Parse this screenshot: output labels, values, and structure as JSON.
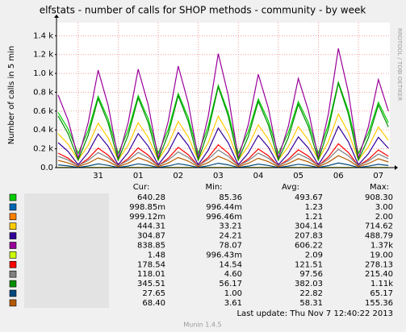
{
  "chart_data": {
    "type": "line",
    "title": "elfstats - number of calls for SHOP methods - community - by week",
    "y_label": "Number of calls in 5 min",
    "watermark": "RRDTOOL / TOBI OETIKER",
    "categories": [
      null,
      null,
      null,
      null,
      "31",
      null,
      null,
      null,
      "01",
      null,
      null,
      null,
      "02",
      null,
      null,
      null,
      "03",
      null,
      null,
      null,
      "04",
      null,
      null,
      null,
      "05",
      null,
      null,
      null,
      "06",
      null,
      null,
      null,
      "07",
      null
    ],
    "ylim": [
      0,
      1540
    ],
    "yticks": [
      {
        "value": 0,
        "label": "0.0"
      },
      {
        "value": 200,
        "label": "0.2 k"
      },
      {
        "value": 400,
        "label": "0.4 k"
      },
      {
        "value": 600,
        "label": "0.6 k"
      },
      {
        "value": 800,
        "label": "0.8 k"
      },
      {
        "value": 1000,
        "label": "1.0 k"
      },
      {
        "value": 1200,
        "label": "1.2 k"
      },
      {
        "value": 1400,
        "label": "1.4 k"
      }
    ],
    "grid": true,
    "series": [
      {
        "color": "#00CC00",
        "values": [
          586,
          411,
          150,
          393,
          757,
          514,
          150,
          396,
          764,
          519,
          150,
          404,
          786,
          532,
          150,
          439,
          872,
          583,
          150,
          381,
          729,
          497,
          150,
          370,
          700,
          480,
          150,
          453,
          907,
          604,
          150,
          367,
          693,
          476
        ]
      },
      {
        "color": "#0066B3",
        "values": [
          1,
          1,
          1,
          1,
          1,
          1,
          1,
          1,
          1,
          1,
          1,
          1,
          1,
          1,
          1,
          1,
          1,
          1,
          1,
          1,
          1,
          1,
          1,
          1,
          1,
          1,
          1,
          1,
          1,
          1,
          1,
          1,
          1,
          1
        ]
      },
      {
        "color": "#FF8000",
        "values": [
          1,
          1,
          1,
          1,
          1,
          1,
          1,
          1,
          1,
          1,
          1,
          1,
          1,
          1,
          1,
          1,
          1,
          1,
          1,
          1,
          1,
          1,
          1,
          1,
          1,
          1,
          1,
          1,
          1,
          1,
          1,
          1,
          1,
          1
        ]
      },
      {
        "color": "#FFCC00",
        "values": [
          361,
          249,
          80,
          237,
          472,
          315,
          80,
          239,
          477,
          318,
          80,
          244,
          491,
          327,
          80,
          266,
          546,
          360,
          80,
          230,
          454,
          304,
          80,
          222,
          435,
          293,
          80,
          276,
          569,
          374,
          80,
          220,
          431,
          290
        ]
      },
      {
        "color": "#330099",
        "values": [
          265,
          171,
          30,
          161,
          357,
          226,
          30,
          162,
          361,
          228,
          30,
          167,
          372,
          235,
          30,
          185,
          419,
          263,
          30,
          155,
          342,
          217,
          30,
          148,
          326,
          208,
          30,
          193,
          438,
          275,
          30,
          147,
          322,
          205
        ]
      },
      {
        "color": "#990099",
        "values": [
          770,
          502,
          100,
          474,
          1034,
          660,
          100,
          478,
          1045,
          667,
          100,
          491,
          1078,
          687,
          100,
          544,
          1210,
          766,
          100,
          456,
          990,
          634,
          100,
          438,
          946,
          608,
          100,
          566,
          1265,
          799,
          100,
          434,
          935,
          601
        ]
      },
      {
        "color": "#CCFF00",
        "values": [
          2,
          2,
          2,
          2,
          2,
          2,
          2,
          2,
          2,
          2,
          2,
          2,
          2,
          2,
          2,
          2,
          2,
          2,
          2,
          2,
          2,
          2,
          2,
          2,
          2,
          2,
          2,
          2,
          2,
          2,
          2,
          2,
          2,
          2
        ]
      },
      {
        "color": "#FF0000",
        "values": [
          154,
          100,
          20,
          95,
          207,
          132,
          20,
          96,
          209,
          133,
          20,
          98,
          216,
          137,
          20,
          109,
          242,
          153,
          20,
          91,
          198,
          127,
          20,
          88,
          189,
          122,
          20,
          113,
          253,
          160,
          20,
          87,
          187,
          120
        ]
      },
      {
        "color": "#808080",
        "values": [
          120,
          80,
          20,
          76,
          160,
          104,
          20,
          77,
          162,
          105,
          20,
          79,
          167,
          108,
          20,
          87,
          187,
          120,
          20,
          73,
          154,
          100,
          20,
          71,
          147,
          96,
          20,
          90,
          195,
          125,
          20,
          70,
          145,
          95
        ]
      },
      {
        "color": "#008F00",
        "values": [
          549,
          361,
          80,
          342,
          734,
          472,
          80,
          345,
          742,
          477,
          80,
          354,
          765,
          491,
          80,
          391,
          857,
          546,
          80,
          329,
          703,
          454,
          80,
          317,
          672,
          436,
          80,
          406,
          896,
          569,
          80,
          314,
          665,
          431
        ]
      },
      {
        "color": "#00487D",
        "values": [
          29,
          18,
          2,
          17,
          39,
          24,
          2,
          17,
          40,
          25,
          2,
          18,
          41,
          25,
          2,
          20,
          46,
          29,
          2,
          16,
          38,
          23,
          2,
          16,
          36,
          22,
          2,
          21,
          49,
          30,
          2,
          15,
          35,
          22
        ]
      },
      {
        "color": "#B35A00",
        "values": [
          77,
          50,
          10,
          47,
          103,
          66,
          10,
          48,
          105,
          67,
          10,
          49,
          108,
          69,
          10,
          54,
          121,
          77,
          10,
          46,
          99,
          63,
          10,
          44,
          95,
          61,
          10,
          57,
          127,
          80,
          10,
          43,
          94,
          60
        ]
      }
    ],
    "legend": {
      "headers": [
        "Cur:",
        "Min:",
        "Avg:",
        "Max:"
      ],
      "rows": [
        [
          "640.28",
          "85.36",
          "493.67",
          "908.30"
        ],
        [
          "998.85m",
          "996.44m",
          "1.23",
          "3.00"
        ],
        [
          "999.12m",
          "996.46m",
          "1.21",
          "2.00"
        ],
        [
          "444.31",
          "33.21",
          "304.14",
          "714.62"
        ],
        [
          "304.87",
          "24.21",
          "207.83",
          "488.79"
        ],
        [
          "838.85",
          "78.07",
          "606.22",
          "1.37k"
        ],
        [
          "1.48",
          "996.43m",
          "2.09",
          "19.00"
        ],
        [
          "178.54",
          "14.54",
          "121.51",
          "278.13"
        ],
        [
          "118.01",
          "4.60",
          "97.56",
          "215.40"
        ],
        [
          "345.51",
          "56.17",
          "382.03",
          "1.11k"
        ],
        [
          "27.65",
          "1.00",
          "22.82",
          "65.17"
        ],
        [
          "68.40",
          "3.61",
          "58.31",
          "155.36"
        ]
      ]
    },
    "last_update": "Last update: Thu Nov  7 12:40:22 2013",
    "footer": "Munin 1.4.5"
  }
}
